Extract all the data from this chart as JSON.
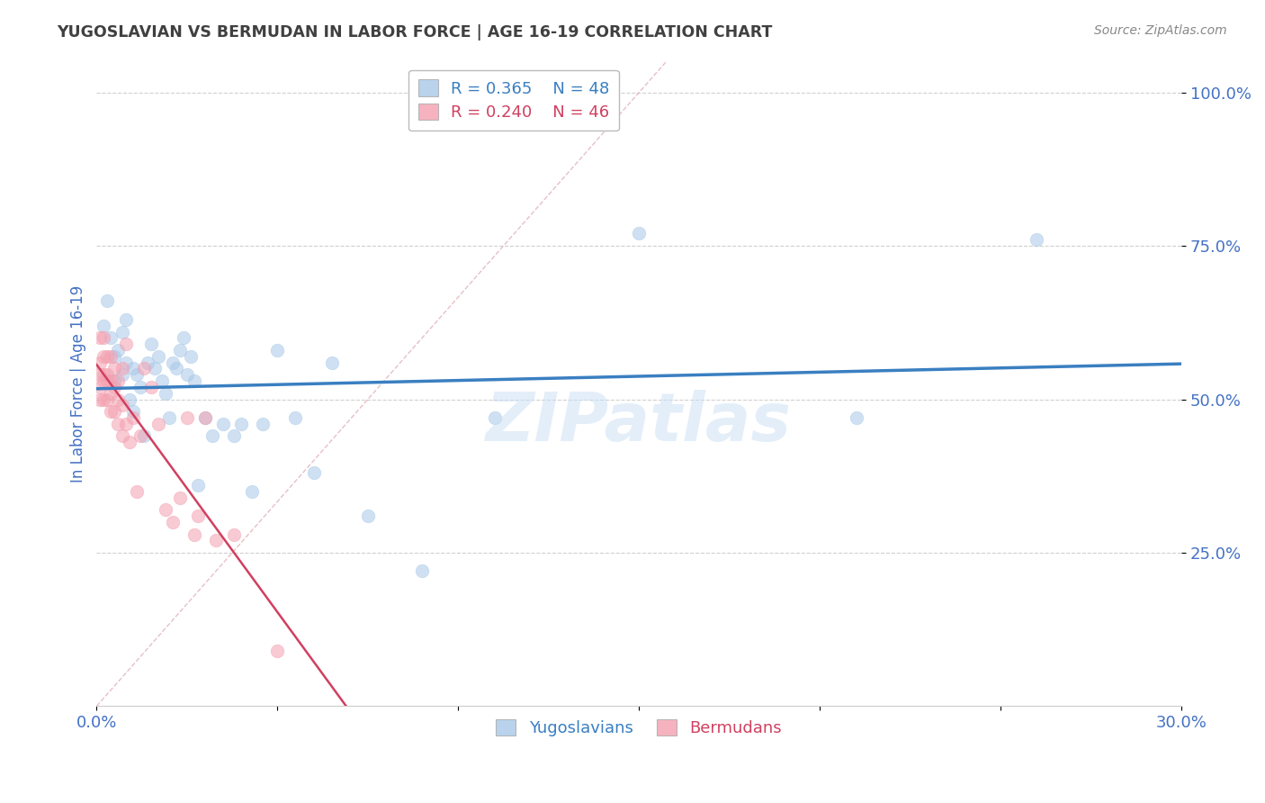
{
  "title": "YUGOSLAVIAN VS BERMUDAN IN LABOR FORCE | AGE 16-19 CORRELATION CHART",
  "source": "Source: ZipAtlas.com",
  "ylabel": "In Labor Force | Age 16-19",
  "xlim": [
    0.0,
    0.3
  ],
  "ylim": [
    0.0,
    1.05
  ],
  "yticks": [
    0.25,
    0.5,
    0.75,
    1.0
  ],
  "ytick_labels": [
    "25.0%",
    "50.0%",
    "75.0%",
    "100.0%"
  ],
  "xticks": [
    0.0,
    0.05,
    0.1,
    0.15,
    0.2,
    0.25,
    0.3
  ],
  "xtick_labels": [
    "0.0%",
    "",
    "",
    "",
    "",
    "",
    "30.0%"
  ],
  "grid_color": "#d0d0d0",
  "background_color": "#ffffff",
  "blue_color": "#a8c8e8",
  "pink_color": "#f4a0b0",
  "blue_line_color": "#3a7fc1",
  "pink_line_color": "#d04060",
  "diag_line_color": "#e0b0b8",
  "legend_blue_label": "R = 0.365    N = 48",
  "legend_pink_label": "R = 0.240    N = 46",
  "legend_label_blue": "Yugoslavians",
  "legend_label_pink": "Bermudans",
  "title_color": "#404040",
  "tick_color": "#4472c4",
  "source_color": "#888888",
  "watermark": "ZIPatlas",
  "watermark_color": "#c8dff5",
  "marker_size": 110,
  "marker_alpha": 0.55,
  "blue_scatter_x": [
    0.002,
    0.003,
    0.004,
    0.005,
    0.005,
    0.006,
    0.007,
    0.007,
    0.008,
    0.008,
    0.009,
    0.01,
    0.01,
    0.011,
    0.012,
    0.013,
    0.014,
    0.015,
    0.016,
    0.017,
    0.018,
    0.019,
    0.02,
    0.021,
    0.022,
    0.023,
    0.024,
    0.025,
    0.026,
    0.027,
    0.028,
    0.03,
    0.032,
    0.035,
    0.038,
    0.04,
    0.043,
    0.046,
    0.05,
    0.055,
    0.06,
    0.065,
    0.075,
    0.09,
    0.11,
    0.15,
    0.21,
    0.26
  ],
  "blue_scatter_y": [
    0.62,
    0.66,
    0.6,
    0.57,
    0.53,
    0.58,
    0.54,
    0.61,
    0.56,
    0.63,
    0.5,
    0.48,
    0.55,
    0.54,
    0.52,
    0.44,
    0.56,
    0.59,
    0.55,
    0.57,
    0.53,
    0.51,
    0.47,
    0.56,
    0.55,
    0.58,
    0.6,
    0.54,
    0.57,
    0.53,
    0.36,
    0.47,
    0.44,
    0.46,
    0.44,
    0.46,
    0.35,
    0.46,
    0.58,
    0.47,
    0.38,
    0.56,
    0.31,
    0.22,
    0.47,
    0.77,
    0.47,
    0.76
  ],
  "pink_scatter_x": [
    0.001,
    0.001,
    0.001,
    0.001,
    0.001,
    0.002,
    0.002,
    0.002,
    0.002,
    0.002,
    0.003,
    0.003,
    0.003,
    0.003,
    0.004,
    0.004,
    0.004,
    0.004,
    0.005,
    0.005,
    0.005,
    0.006,
    0.006,
    0.006,
    0.007,
    0.007,
    0.007,
    0.008,
    0.008,
    0.009,
    0.01,
    0.011,
    0.012,
    0.013,
    0.015,
    0.017,
    0.019,
    0.021,
    0.023,
    0.025,
    0.027,
    0.028,
    0.03,
    0.033,
    0.038,
    0.05
  ],
  "pink_scatter_y": [
    0.52,
    0.56,
    0.6,
    0.54,
    0.5,
    0.54,
    0.57,
    0.6,
    0.5,
    0.53,
    0.53,
    0.57,
    0.5,
    0.54,
    0.53,
    0.57,
    0.48,
    0.51,
    0.52,
    0.48,
    0.55,
    0.5,
    0.46,
    0.53,
    0.49,
    0.55,
    0.44,
    0.46,
    0.59,
    0.43,
    0.47,
    0.35,
    0.44,
    0.55,
    0.52,
    0.46,
    0.32,
    0.3,
    0.34,
    0.47,
    0.28,
    0.31,
    0.47,
    0.27,
    0.28,
    0.09
  ]
}
